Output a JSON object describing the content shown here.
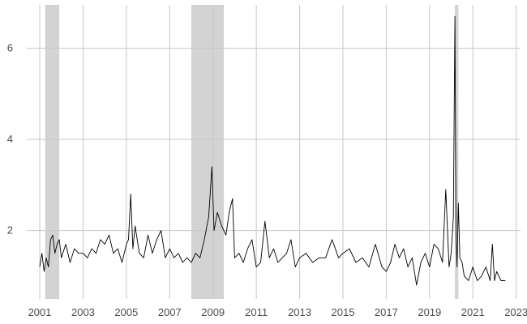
{
  "chart_data": {
    "type": "line",
    "xlim": [
      2000.4,
      2023.2
    ],
    "ylim": [
      0.5,
      6.95
    ],
    "x_ticks": [
      2001,
      2003,
      2005,
      2007,
      2009,
      2011,
      2013,
      2015,
      2017,
      2019,
      2021,
      2023
    ],
    "x_tick_labels": [
      "2001",
      "2003",
      "2005",
      "2007",
      "2009",
      "2011",
      "2013",
      "2015",
      "2017",
      "2019",
      "2021",
      "2023"
    ],
    "y_ticks": [
      2,
      4,
      6
    ],
    "y_tick_labels": [
      "2",
      "4",
      "6"
    ],
    "grid": "on",
    "legend": "none",
    "line_color": "#000000",
    "recession_color": "#d3d3d3",
    "recession_shading": [
      [
        2001.25,
        2001.9
      ],
      [
        2008.0,
        2009.5
      ],
      [
        2020.17,
        2020.33
      ]
    ],
    "series": [
      {
        "x": [
          2001.0,
          2001.1,
          2001.2,
          2001.3,
          2001.4,
          2001.5,
          2001.6,
          2001.7,
          2001.8,
          2001.9,
          2002.0,
          2002.2,
          2002.4,
          2002.6,
          2002.8,
          2003.0,
          2003.2,
          2003.4,
          2003.6,
          2003.8,
          2004.0,
          2004.2,
          2004.4,
          2004.6,
          2004.8,
          2005.0,
          2005.1,
          2005.2,
          2005.3,
          2005.4,
          2005.6,
          2005.8,
          2006.0,
          2006.2,
          2006.4,
          2006.6,
          2006.8,
          2007.0,
          2007.2,
          2007.4,
          2007.6,
          2007.8,
          2008.0,
          2008.2,
          2008.4,
          2008.6,
          2008.8,
          2008.95,
          2009.05,
          2009.2,
          2009.4,
          2009.6,
          2009.75,
          2009.9,
          2010.0,
          2010.2,
          2010.4,
          2010.6,
          2010.8,
          2011.0,
          2011.2,
          2011.4,
          2011.6,
          2011.8,
          2012.0,
          2012.2,
          2012.4,
          2012.6,
          2012.8,
          2013.0,
          2013.3,
          2013.6,
          2013.9,
          2014.2,
          2014.5,
          2014.8,
          2015.0,
          2015.3,
          2015.6,
          2015.9,
          2016.2,
          2016.5,
          2016.8,
          2017.0,
          2017.2,
          2017.4,
          2017.6,
          2017.8,
          2018.0,
          2018.2,
          2018.4,
          2018.6,
          2018.8,
          2019.0,
          2019.2,
          2019.4,
          2019.6,
          2019.75,
          2019.9,
          2020.0,
          2020.1,
          2020.17,
          2020.22,
          2020.27,
          2020.33,
          2020.4,
          2020.5,
          2020.6,
          2020.8,
          2021.0,
          2021.2,
          2021.4,
          2021.6,
          2021.8,
          2021.9,
          2022.0,
          2022.1,
          2022.3,
          2022.5
        ],
        "y": [
          1.2,
          1.5,
          1.1,
          1.4,
          1.2,
          1.8,
          1.9,
          1.5,
          1.7,
          1.8,
          1.4,
          1.7,
          1.3,
          1.6,
          1.5,
          1.5,
          1.4,
          1.6,
          1.5,
          1.8,
          1.7,
          1.9,
          1.5,
          1.6,
          1.3,
          1.7,
          1.8,
          2.8,
          1.6,
          2.1,
          1.5,
          1.4,
          1.9,
          1.5,
          1.8,
          2.0,
          1.4,
          1.6,
          1.4,
          1.5,
          1.3,
          1.4,
          1.3,
          1.5,
          1.4,
          1.8,
          2.3,
          3.4,
          2.0,
          2.4,
          2.1,
          1.9,
          2.4,
          2.7,
          1.4,
          1.5,
          1.3,
          1.6,
          1.8,
          1.2,
          1.3,
          2.2,
          1.4,
          1.6,
          1.3,
          1.4,
          1.5,
          1.8,
          1.2,
          1.4,
          1.5,
          1.3,
          1.4,
          1.4,
          1.8,
          1.4,
          1.5,
          1.6,
          1.3,
          1.4,
          1.2,
          1.7,
          1.2,
          1.1,
          1.3,
          1.7,
          1.4,
          1.6,
          1.2,
          1.4,
          0.8,
          1.3,
          1.5,
          1.2,
          1.7,
          1.6,
          1.3,
          2.9,
          1.2,
          1.5,
          2.3,
          6.7,
          2.0,
          1.2,
          2.6,
          1.4,
          1.3,
          1.0,
          0.9,
          1.2,
          0.9,
          1.0,
          1.2,
          0.9,
          1.7,
          0.9,
          1.1,
          0.9,
          0.9
        ]
      }
    ]
  }
}
